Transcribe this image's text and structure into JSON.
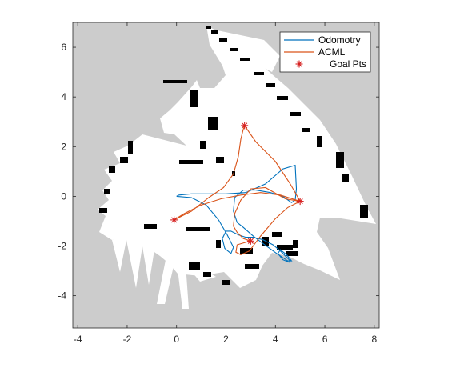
{
  "chart_data": {
    "type": "line",
    "title": "",
    "xlabel": "",
    "ylabel": "",
    "xlim": [
      -4.2,
      8.2
    ],
    "ylim": [
      -5.3,
      7.0
    ],
    "xticks": [
      -4,
      -2,
      0,
      2,
      4,
      6,
      8
    ],
    "yticks": [
      -4,
      -2,
      0,
      2,
      4,
      6
    ],
    "xtick_labels": [
      "-4",
      "-2",
      "0",
      "2",
      "4",
      "6",
      "8"
    ],
    "ytick_labels": [
      "-4",
      "-2",
      "0",
      "2",
      "4",
      "6"
    ],
    "grid": false,
    "legend_position": "top-right",
    "background_image": "occupancy-map",
    "series": [
      {
        "name": "Odomotry",
        "color": "#0072BD",
        "x": [
          0.0,
          0.6,
          1.2,
          1.7,
          2.05,
          2.3,
          2.2,
          1.95,
          1.85,
          2.0,
          2.2,
          2.5,
          2.8,
          3.1,
          3.5,
          3.9,
          4.2,
          4.45,
          4.6,
          4.55,
          4.3,
          4.1,
          4.2,
          4.45,
          4.65,
          4.5,
          4.05,
          3.5,
          3.1,
          2.7,
          2.45,
          2.3,
          2.35,
          2.7,
          3.2,
          3.8,
          4.3,
          4.65,
          4.8,
          4.85,
          4.8,
          4.3,
          3.6,
          2.8,
          2.0,
          1.3,
          0.6,
          0.1,
          0.0
        ],
        "y": [
          0.0,
          -0.05,
          -0.35,
          -0.95,
          -1.55,
          -2.05,
          -2.3,
          -2.1,
          -1.7,
          -1.4,
          -1.4,
          -1.55,
          -1.65,
          -1.65,
          -1.75,
          -1.95,
          -2.2,
          -2.45,
          -2.6,
          -2.65,
          -2.55,
          -2.3,
          -2.15,
          -2.35,
          -2.6,
          -2.6,
          -2.3,
          -1.9,
          -1.6,
          -1.25,
          -1.05,
          -0.6,
          -0.05,
          0.25,
          0.25,
          0.15,
          0.0,
          -0.25,
          -0.15,
          0.3,
          1.25,
          1.1,
          0.5,
          0.15,
          0.1,
          0.1,
          0.1,
          0.05,
          0.0
        ]
      },
      {
        "name": "ACML",
        "color": "#D95319",
        "x": [
          -0.1,
          0.6,
          1.3,
          1.9,
          2.3,
          2.5,
          2.6,
          2.7,
          2.75,
          3.2,
          4.0,
          4.6,
          5.0,
          4.4,
          3.6,
          3.0,
          2.6,
          2.35,
          2.3,
          2.45,
          2.7,
          3.0,
          2.8,
          2.45,
          2.4,
          2.6,
          2.95,
          3.4,
          4.0,
          4.5,
          5.0,
          4.2,
          3.4,
          2.6,
          1.8,
          1.0,
          0.3,
          -0.1
        ],
        "y": [
          -0.95,
          -0.6,
          -0.05,
          0.35,
          0.9,
          1.6,
          2.3,
          2.7,
          2.85,
          2.2,
          1.4,
          0.5,
          -0.2,
          -0.1,
          0.35,
          0.3,
          -0.15,
          -0.7,
          -1.2,
          -1.45,
          -1.7,
          -1.8,
          -1.85,
          -1.95,
          -2.25,
          -2.35,
          -2.2,
          -1.6,
          -0.9,
          -0.45,
          -0.2,
          0.05,
          0.15,
          0.05,
          -0.1,
          -0.35,
          -0.7,
          -0.95
        ]
      },
      {
        "name": "Goal Pts",
        "color": "#D62020",
        "marker": "asterisk",
        "x": [
          -0.1,
          2.75,
          5.0,
          3.0
        ],
        "y": [
          -0.95,
          2.85,
          -0.2,
          -1.8
        ]
      }
    ]
  }
}
